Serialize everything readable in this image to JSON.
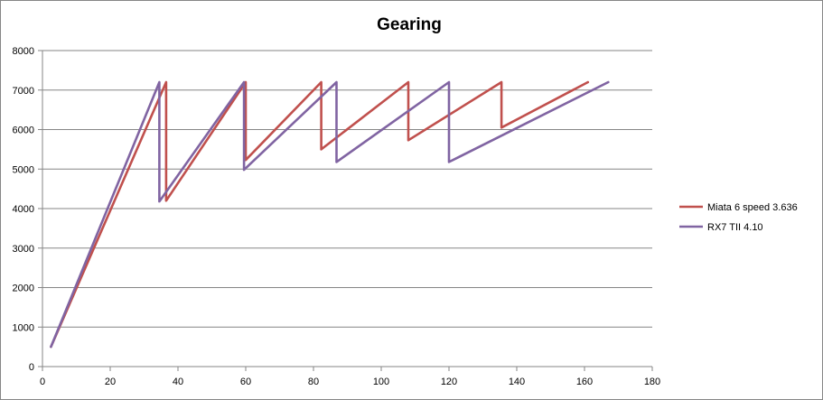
{
  "chart_data": {
    "type": "line",
    "title": "Gearing",
    "xlabel": "",
    "ylabel": "",
    "xlim": [
      0,
      180
    ],
    "ylim": [
      0,
      8000
    ],
    "x_ticks": [
      0,
      20,
      40,
      60,
      80,
      100,
      120,
      140,
      160,
      180
    ],
    "y_ticks": [
      0,
      1000,
      2000,
      3000,
      4000,
      5000,
      6000,
      7000,
      8000
    ],
    "grid": "horizontal",
    "legend_position": "right",
    "series": [
      {
        "name": "Miata 6 speed 3.636",
        "color": "#c0504d",
        "points": [
          [
            2.5,
            500
          ],
          [
            36.5,
            7200
          ],
          [
            36.5,
            4200
          ],
          [
            60,
            7200
          ],
          [
            60,
            5230
          ],
          [
            82.3,
            7200
          ],
          [
            82.3,
            5500
          ],
          [
            108,
            7200
          ],
          [
            108,
            5730
          ],
          [
            135.5,
            7200
          ],
          [
            135.5,
            6050
          ],
          [
            161,
            7200
          ]
        ]
      },
      {
        "name": "RX7 TII  4.10",
        "color": "#8064a2",
        "points": [
          [
            2.5,
            500
          ],
          [
            34.5,
            7200
          ],
          [
            34.5,
            4180
          ],
          [
            59.5,
            7200
          ],
          [
            59.5,
            4980
          ],
          [
            86.8,
            7200
          ],
          [
            86.8,
            5180
          ],
          [
            120,
            7200
          ],
          [
            120,
            5180
          ],
          [
            167,
            7200
          ]
        ]
      }
    ]
  }
}
